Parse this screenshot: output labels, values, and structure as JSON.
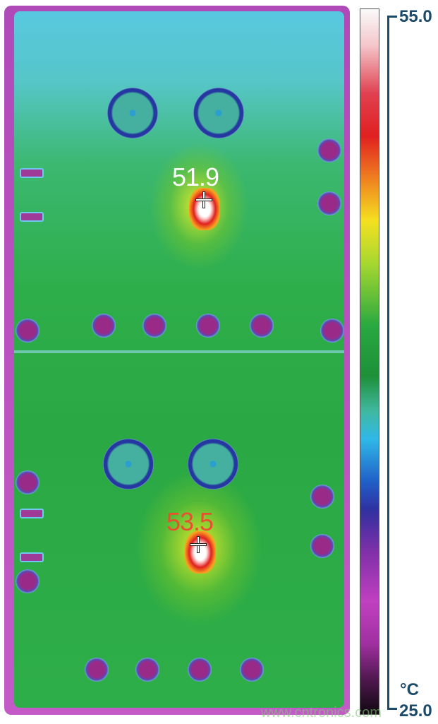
{
  "hotspots": [
    {
      "label": "51.9",
      "color": "#ffffff"
    },
    {
      "label": "53.5",
      "color": "#e85030"
    }
  ],
  "scale": {
    "max": "55.0",
    "min": "25.0",
    "unit": "°C",
    "palette": [
      "#fafafa",
      "#e02020",
      "#f08020",
      "#f4e020",
      "#28a840",
      "#30b8e8",
      "#2060c8",
      "#c040c0",
      "#100810"
    ]
  },
  "watermark": "www.cntronics.com"
}
